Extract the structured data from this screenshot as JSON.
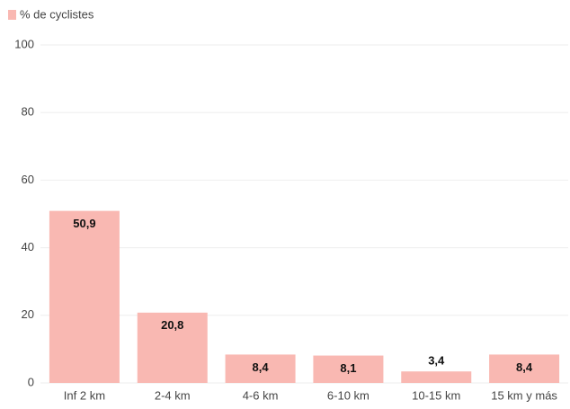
{
  "chart_data": {
    "type": "bar",
    "legend": "% de cyclistes",
    "categories": [
      "Inf 2 km",
      "2-4 km",
      "4-6 km",
      "6-10 km",
      "10-15 km",
      "15 km y más"
    ],
    "values": [
      50.9,
      20.8,
      8.4,
      8.1,
      3.4,
      8.4
    ],
    "value_labels": [
      "50,9",
      "20,8",
      "8,4",
      "8,1",
      "3,4",
      "8,4"
    ],
    "color": "#f9b8b2",
    "ylim": [
      0,
      100
    ],
    "yticks": [
      0,
      20,
      40,
      60,
      80,
      100
    ],
    "grid": true
  }
}
